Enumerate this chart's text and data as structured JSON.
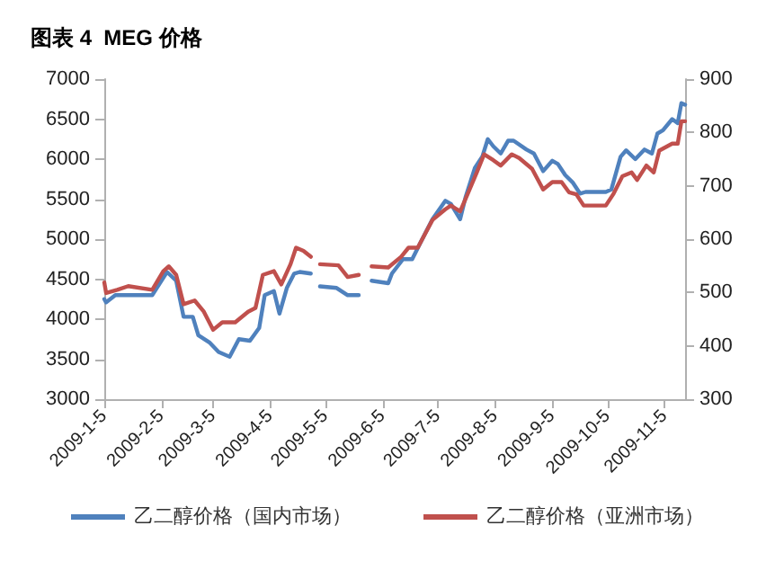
{
  "chart_data": {
    "type": "line",
    "title": "图表 4  MEG 价格",
    "xlim": [
      "2009-01-05",
      "2009-11-16"
    ],
    "xticks": [
      {
        "value": "2009-01-05",
        "label": "2009-1-5"
      },
      {
        "value": "2009-02-05",
        "label": "2009-2-5"
      },
      {
        "value": "2009-03-05",
        "label": "2009-3-5"
      },
      {
        "value": "2009-04-05",
        "label": "2009-4-5"
      },
      {
        "value": "2009-05-05",
        "label": "2009-5-5"
      },
      {
        "value": "2009-06-05",
        "label": "2009-6-5"
      },
      {
        "value": "2009-07-05",
        "label": "2009-7-5"
      },
      {
        "value": "2009-08-05",
        "label": "2009-8-5"
      },
      {
        "value": "2009-09-05",
        "label": "2009-9-5"
      },
      {
        "value": "2009-10-05",
        "label": "2009-10-5"
      },
      {
        "value": "2009-11-05",
        "label": "2009-11-5"
      }
    ],
    "ylim": [
      3000,
      7000
    ],
    "yticks": [
      3000,
      3500,
      4000,
      4500,
      5000,
      5500,
      6000,
      6500,
      7000
    ],
    "y2lim": [
      300,
      900
    ],
    "y2ticks": [
      300,
      400,
      500,
      600,
      700,
      800,
      900
    ],
    "grid": false,
    "legend": "bottom",
    "marker": "none",
    "line_style": "solid",
    "series": [
      {
        "name": "乙二醇价格（国内市场）",
        "color": "#4f81bd",
        "x": [
          "2009-01-05",
          "2009-01-06",
          "2009-01-11",
          "2009-01-31",
          "2009-02-08",
          "2009-02-13",
          "2009-02-17",
          "2009-02-22",
          "2009-02-25",
          "2009-03-03",
          "2009-03-08",
          "2009-03-14",
          "2009-03-19",
          "2009-03-25",
          "2009-03-30",
          "2009-04-02",
          "2009-04-07",
          "2009-04-10",
          "2009-04-14",
          "2009-04-18",
          "2009-04-21",
          "2009-04-27",
          "2009-04-29",
          "2009-05-02",
          "2009-05-11",
          "2009-05-17",
          "2009-05-23",
          "2009-05-26",
          "2009-05-30",
          "2009-06-08",
          "2009-06-10",
          "2009-06-16",
          "2009-06-21",
          "2009-06-26",
          "2009-07-02",
          "2009-07-09",
          "2009-07-12",
          "2009-07-17",
          "2009-07-20",
          "2009-07-25",
          "2009-07-29",
          "2009-08-01",
          "2009-08-04",
          "2009-08-08",
          "2009-08-12",
          "2009-08-15",
          "2009-08-22",
          "2009-08-26",
          "2009-08-31",
          "2009-09-05",
          "2009-09-08",
          "2009-09-12",
          "2009-09-16",
          "2009-09-20",
          "2009-09-23",
          "2009-10-04",
          "2009-10-07",
          "2009-10-12",
          "2009-10-15",
          "2009-10-20",
          "2009-10-25",
          "2009-10-29",
          "2009-11-01",
          "2009-11-04",
          "2009-11-09",
          "2009-11-12",
          "2009-11-14",
          "2009-11-16"
        ],
        "values": [
          4250,
          4210,
          4300,
          4300,
          4590,
          4480,
          4030,
          4030,
          3800,
          3710,
          3590,
          3530,
          3750,
          3730,
          3890,
          4300,
          4350,
          4070,
          4390,
          4570,
          4590,
          4570,
          null,
          4410,
          4390,
          4300,
          4300,
          null,
          4480,
          4450,
          4570,
          4750,
          4750,
          4980,
          5250,
          5480,
          5440,
          5250,
          5530,
          5890,
          6030,
          6250,
          6160,
          6070,
          6230,
          6230,
          6120,
          6070,
          5850,
          5980,
          5940,
          5800,
          5710,
          5570,
          5590,
          5590,
          5620,
          6030,
          6110,
          6000,
          6120,
          6070,
          6320,
          6360,
          6500,
          6450,
          6700,
          6680
        ]
      },
      {
        "name": "乙二醇价格（亚洲市场）",
        "color": "#c0504d",
        "axis": "y2",
        "x": [
          "2009-01-05",
          "2009-01-06",
          "2009-01-12",
          "2009-01-18",
          "2009-01-31",
          "2009-02-06",
          "2009-02-09",
          "2009-02-13",
          "2009-02-17",
          "2009-02-23",
          "2009-02-28",
          "2009-03-05",
          "2009-03-10",
          "2009-03-17",
          "2009-03-24",
          "2009-03-28",
          "2009-04-01",
          "2009-04-07",
          "2009-04-11",
          "2009-04-16",
          "2009-04-19",
          "2009-04-23",
          "2009-04-27",
          "2009-04-29",
          "2009-05-02",
          "2009-05-12",
          "2009-05-17",
          "2009-05-23",
          "2009-05-26",
          "2009-05-30",
          "2009-06-08",
          "2009-06-15",
          "2009-06-19",
          "2009-06-24",
          "2009-07-02",
          "2009-07-09",
          "2009-07-12",
          "2009-07-17",
          "2009-07-21",
          "2009-07-26",
          "2009-07-30",
          "2009-08-04",
          "2009-08-08",
          "2009-08-14",
          "2009-08-18",
          "2009-08-25",
          "2009-08-31",
          "2009-09-05",
          "2009-09-10",
          "2009-09-14",
          "2009-09-18",
          "2009-09-22",
          "2009-10-04",
          "2009-10-08",
          "2009-10-13",
          "2009-10-18",
          "2009-10-21",
          "2009-10-26",
          "2009-10-30",
          "2009-11-02",
          "2009-11-09",
          "2009-11-12",
          "2009-11-14",
          "2009-11-16"
        ],
        "values": [
          519,
          499,
          505,
          512,
          505,
          540,
          549,
          533,
          478,
          485,
          464,
          430,
          444,
          444,
          464,
          471,
          533,
          540,
          515,
          553,
          584,
          578,
          567,
          null,
          553,
          551,
          529,
          533,
          null,
          549,
          547,
          567,
          584,
          584,
          636,
          656,
          663,
          652,
          684,
          725,
          759,
          748,
          738,
          759,
          752,
          732,
          693,
          707,
          707,
          688,
          684,
          663,
          663,
          684,
          718,
          725,
          711,
          738,
          725,
          766,
          779,
          779,
          821,
          821
        ]
      }
    ]
  }
}
